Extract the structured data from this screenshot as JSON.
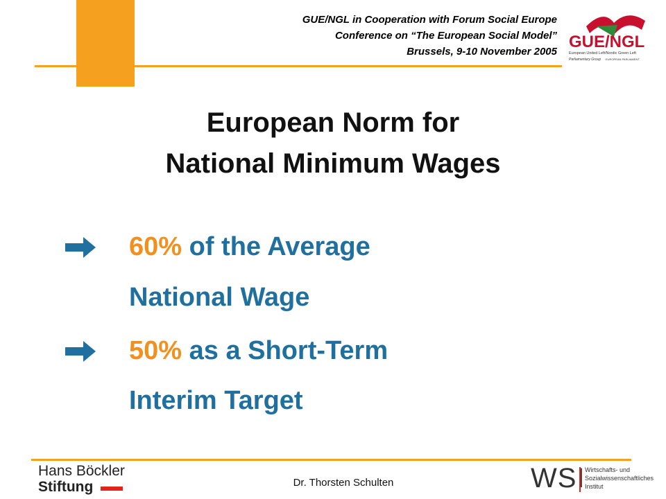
{
  "header": {
    "lines": [
      "GUE/NGL in Cooperation with Forum Social Europe",
      "Conference on “The European Social  Model”",
      "Brussels, 9-10 November 2005"
    ]
  },
  "logo": {
    "name": "GUE/NGL",
    "lines": [
      "European United Left/Nordic Green Left",
      "Parliamentary Group",
      "EUROPEAN PARLIAMENT"
    ]
  },
  "title": {
    "lines": [
      "European Norm for",
      "National Minimum Wages"
    ]
  },
  "bullets": [
    {
      "highlight": "60%",
      "text": " of the Average",
      "continuation": "National Wage"
    },
    {
      "highlight": "50%",
      "text": " as a Short-Term",
      "continuation": "Interim Target"
    }
  ],
  "footer": {
    "left_logo": [
      "Hans Böckler",
      "Stiftung"
    ],
    "author": "Dr. Thorsten Schulten",
    "right_logo": {
      "name": "WSI",
      "lines": [
        "Wirtschafts- und",
        "Sozialwissenschaftliches",
        "Institut"
      ]
    }
  }
}
